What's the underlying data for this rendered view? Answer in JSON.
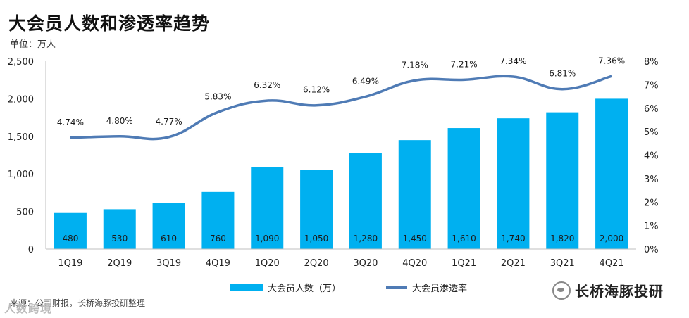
{
  "header": {
    "title": "大会员人数和渗透率趋势",
    "unit": "单位：万人"
  },
  "footer": {
    "source": "来源：公司财报，长桥海豚投研整理",
    "brand": "长桥海豚投研",
    "watermark": "人数跨境"
  },
  "chart_data": {
    "type": "bar+line",
    "categories": [
      "1Q19",
      "2Q19",
      "3Q19",
      "4Q19",
      "1Q20",
      "2Q20",
      "3Q20",
      "4Q20",
      "1Q21",
      "2Q21",
      "3Q21",
      "4Q21"
    ],
    "series": [
      {
        "name": "大会员人数（万）",
        "type": "bar",
        "axis": "left",
        "color": "#00B0F0",
        "values": [
          480,
          530,
          610,
          760,
          1090,
          1050,
          1280,
          1450,
          1610,
          1740,
          1820,
          2000
        ],
        "labels": [
          "480",
          "530",
          "610",
          "760",
          "1,090",
          "1,050",
          "1,280",
          "1,450",
          "1,610",
          "1,740",
          "1,820",
          "2,000"
        ]
      },
      {
        "name": "大会员渗透率",
        "type": "line",
        "axis": "right",
        "color": "#4F7BB5",
        "values": [
          4.74,
          4.8,
          4.77,
          5.83,
          6.32,
          6.12,
          6.49,
          7.18,
          7.21,
          7.34,
          6.81,
          7.36
        ],
        "labels": [
          "4.74%",
          "4.80%",
          "4.77%",
          "5.83%",
          "6.32%",
          "6.12%",
          "6.49%",
          "7.18%",
          "7.21%",
          "7.34%",
          "6.81%",
          "7.36%"
        ]
      }
    ],
    "y_left": {
      "min": 0,
      "max": 2500,
      "ticks": [
        0,
        500,
        1000,
        1500,
        2000,
        2500
      ],
      "tick_labels": [
        "0",
        "500",
        "1,000",
        "1,500",
        "2,000",
        "2,500"
      ]
    },
    "y_right": {
      "min": 0,
      "max": 8,
      "ticks": [
        0,
        1,
        2,
        3,
        4,
        5,
        6,
        7,
        8
      ],
      "tick_labels": [
        "0%",
        "1%",
        "2%",
        "3%",
        "4%",
        "5%",
        "6%",
        "7%",
        "8%"
      ]
    },
    "grid": false,
    "legend_position": "bottom"
  }
}
